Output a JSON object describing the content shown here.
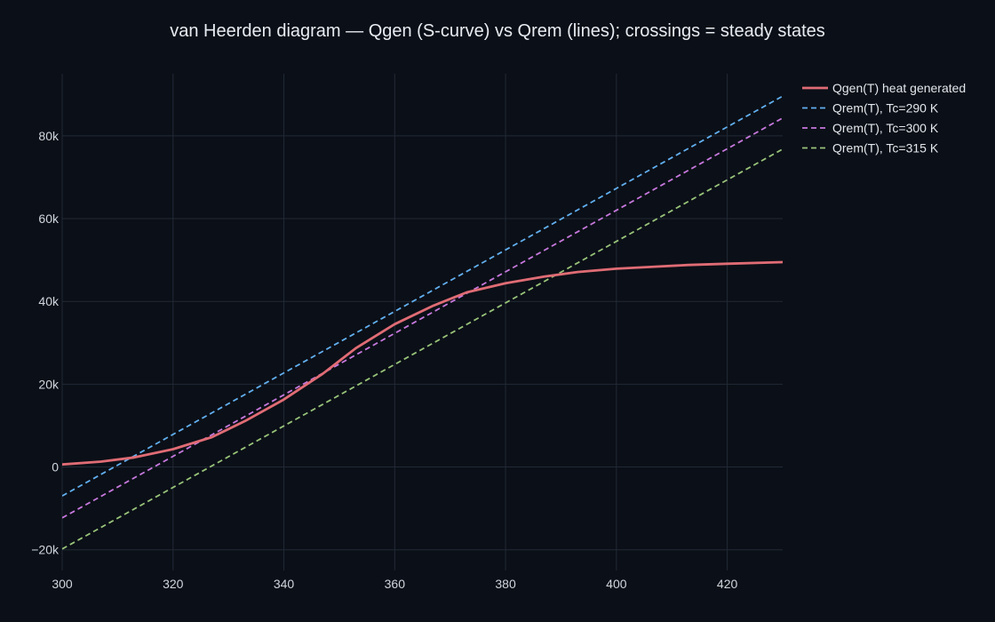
{
  "chart_data": {
    "type": "line",
    "title": "van Heerden diagram — Qgen (S-curve) vs Qrem (lines); crossings = steady states",
    "xlabel": "",
    "ylabel": "",
    "xlim": [
      300,
      430
    ],
    "ylim": [
      -25000,
      95000
    ],
    "x_ticks": [
      300,
      320,
      340,
      360,
      380,
      400,
      420
    ],
    "x_tick_labels": [
      "300",
      "320",
      "340",
      "360",
      "380",
      "400",
      "420"
    ],
    "y_ticks": [
      -20000,
      0,
      20000,
      40000,
      60000,
      80000
    ],
    "y_tick_labels": [
      "−20k",
      "0",
      "20k",
      "40k",
      "60k",
      "80k"
    ],
    "grid": true,
    "legend_position": "top-right",
    "series": [
      {
        "name": "Qgen(T)  heat generated",
        "color": "#e06c75",
        "style": "solid",
        "x": [
          300,
          307,
          313,
          320,
          327,
          333,
          340,
          347,
          353,
          360,
          367,
          373,
          380,
          387,
          393,
          400,
          407,
          413,
          420,
          430
        ],
        "y": [
          600,
          1300,
          2300,
          4300,
          7200,
          11100,
          16300,
          22500,
          28700,
          34500,
          39000,
          42200,
          44400,
          46000,
          47100,
          47900,
          48400,
          48800,
          49100,
          49500
        ]
      },
      {
        "name": "Qrem(T), Tc=290 K",
        "color": "#61afef",
        "style": "dash",
        "x": [
          300,
          430
        ],
        "y": [
          -7000,
          89600
        ]
      },
      {
        "name": "Qrem(T), Tc=300 K",
        "color": "#c678dd",
        "style": "dash",
        "x": [
          300,
          430
        ],
        "y": [
          -12300,
          84300
        ]
      },
      {
        "name": "Qrem(T), Tc=315 K",
        "color": "#98c379",
        "style": "dash",
        "x": [
          300,
          430
        ],
        "y": [
          -19800,
          76800
        ]
      }
    ]
  }
}
